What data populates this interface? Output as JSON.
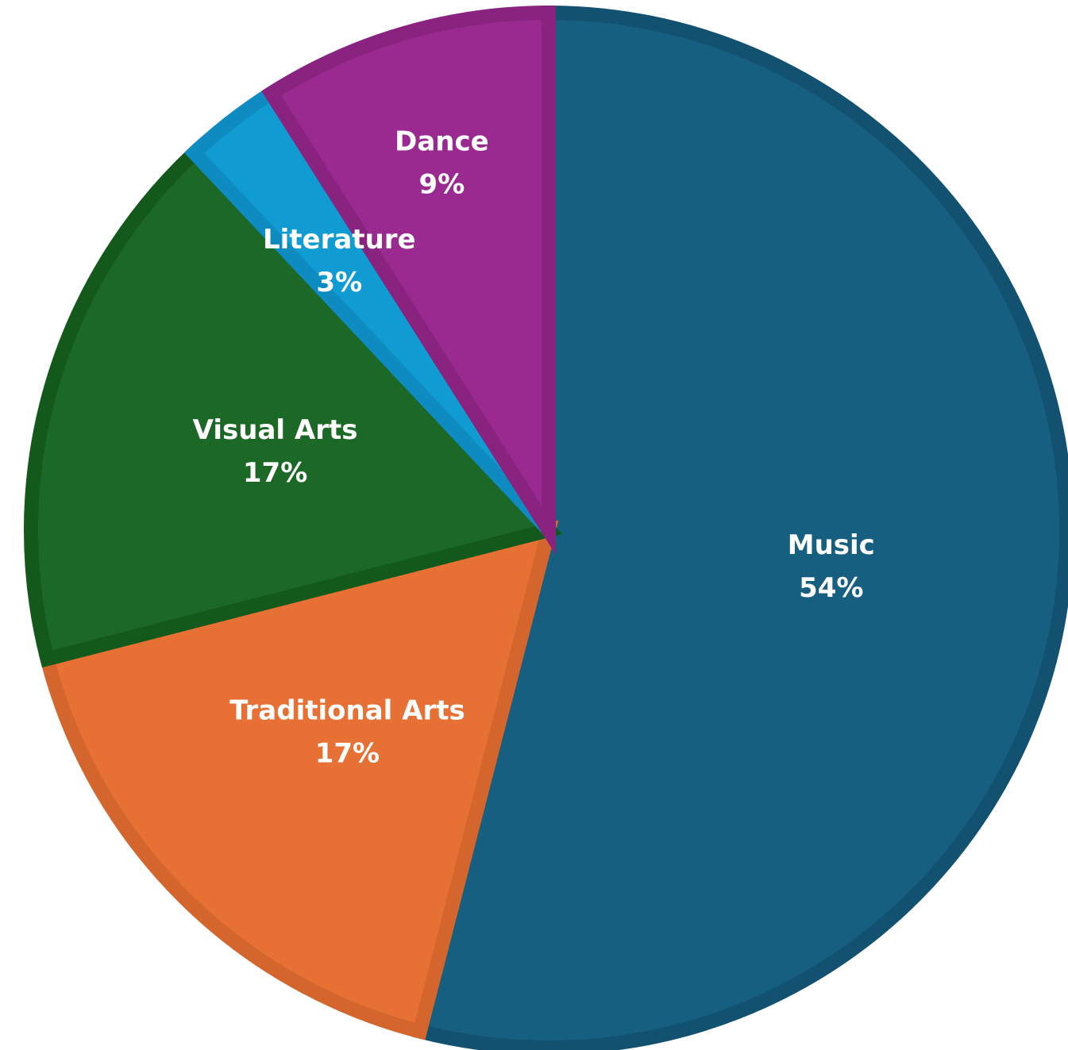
{
  "chart_data": {
    "type": "pie",
    "title": "",
    "start_angle_deg": 0,
    "direction": "clockwise",
    "slices": [
      {
        "label": "Music",
        "value": 54,
        "value_label": "54%",
        "color": "#175f80",
        "border": "#12516f"
      },
      {
        "label": "Traditional Arts",
        "value": 17,
        "value_label": "17%",
        "color": "#e77135",
        "border": "#d4652c"
      },
      {
        "label": "Visual Arts",
        "value": 17,
        "value_label": "17%",
        "color": "#1c6826",
        "border": "#14591c"
      },
      {
        "label": "Literature",
        "value": 3,
        "value_label": "3%",
        "color": "#109bd3",
        "border": "#0e8bc0"
      },
      {
        "label": "Dance",
        "value": 9,
        "value_label": "9%",
        "color": "#9a2a90",
        "border": "#8a2280"
      }
    ]
  }
}
